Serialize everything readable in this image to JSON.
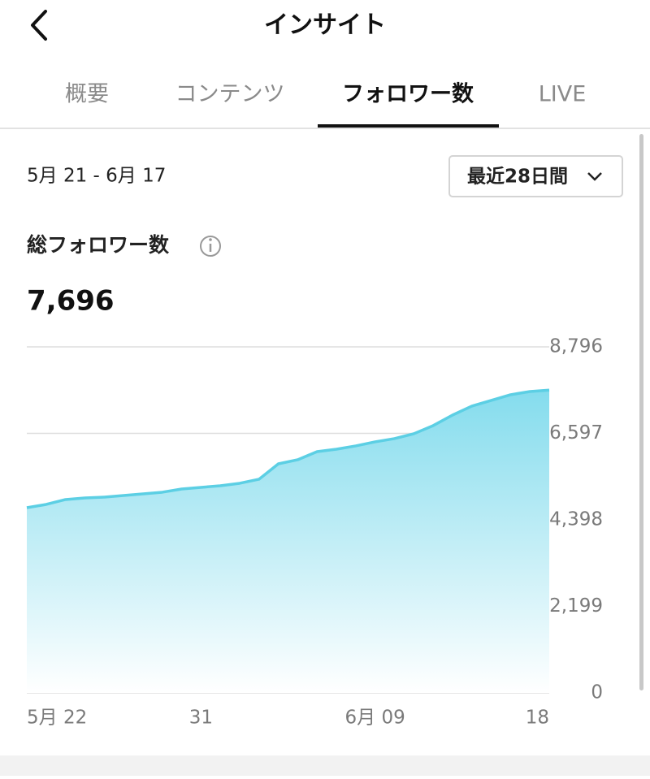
{
  "header": {
    "title": "インサイト"
  },
  "tabs": {
    "items": [
      "概要",
      "コンテンツ",
      "フォロワー数",
      "LIVE"
    ],
    "active": 2
  },
  "date_range": "5月 21 - 6月 17",
  "period_dropdown": "最近28日間",
  "metric": {
    "label": "総フォロワー数",
    "total": "7,696"
  },
  "chart_data": {
    "type": "area",
    "categories": [
      "5月 22",
      null,
      null,
      null,
      null,
      null,
      null,
      null,
      null,
      "31",
      null,
      null,
      null,
      null,
      null,
      null,
      null,
      null,
      "6月 09",
      null,
      null,
      null,
      null,
      null,
      null,
      null,
      null,
      "18"
    ],
    "values": [
      4708,
      4791,
      4915,
      4956,
      4977,
      5018,
      5059,
      5101,
      5183,
      5224,
      5266,
      5328,
      5431,
      5823,
      5927,
      6133,
      6195,
      6278,
      6381,
      6464,
      6588,
      6794,
      7062,
      7290,
      7434,
      7579,
      7661,
      7696
    ],
    "color": "#5ccfe4",
    "ylim": [
      0,
      8796
    ],
    "yticks": [
      0,
      {
        "value": 2199,
        "label": "2,199"
      },
      {
        "value": 4398,
        "label": "4,398"
      },
      {
        "value": 6597,
        "label": "6,597"
      },
      {
        "value": 8796,
        "label": "8,796"
      }
    ],
    "grid": true
  }
}
